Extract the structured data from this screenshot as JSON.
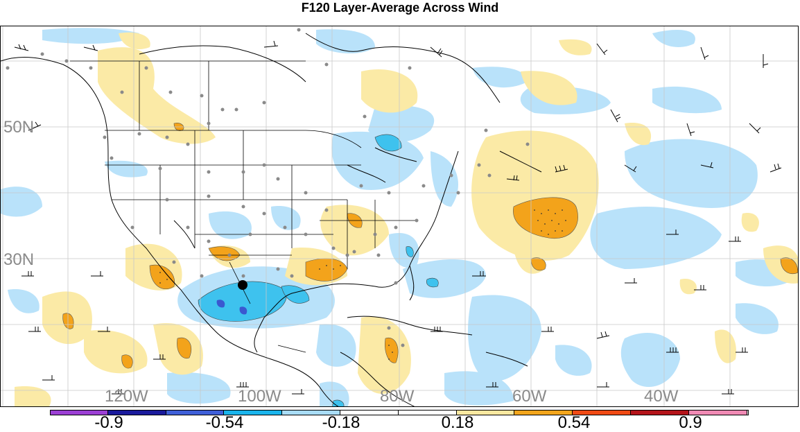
{
  "title": "F120 Layer-Average Across Wind",
  "map": {
    "lat_labels": [
      "50N",
      "30N"
    ],
    "lon_labels": [
      "120W",
      "100W",
      "80W",
      "60W",
      "40W"
    ]
  },
  "colorbar": {
    "tick_labels": [
      "-0.9",
      "-0.54",
      "-0.18",
      "0.18",
      "0.54",
      "0.9"
    ],
    "colors": [
      "#9b3fd4",
      "#1a1a9c",
      "#3f5fd8",
      "#1ab4ec",
      "#a8dcf6",
      "#ffffff",
      "#ffffff",
      "#fbe8a0",
      "#f2a51c",
      "#f04a14",
      "#b4141a",
      "#f08ab4"
    ]
  },
  "colors": {
    "light_blue": "#b9e2fa",
    "mid_blue": "#3ec2ee",
    "dark_blue": "#3a58d0",
    "light_yellow": "#fbeaa6",
    "orange": "#f3a31b",
    "grid": "#c8c8c8",
    "coast": "#000000",
    "station": "#8a8a8a"
  },
  "marker": "storm-center"
}
